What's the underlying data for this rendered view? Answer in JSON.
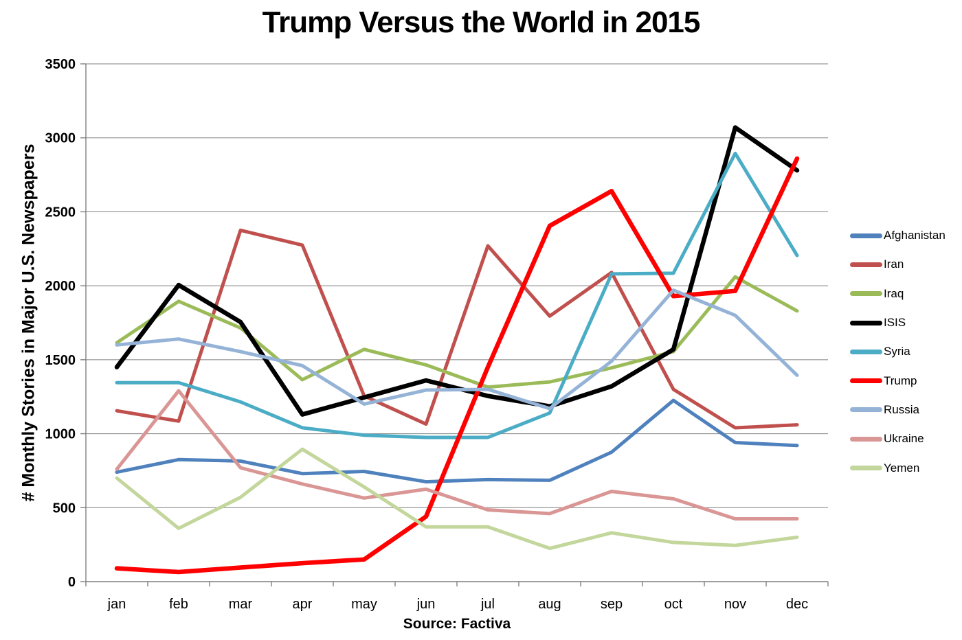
{
  "chart_data": {
    "type": "line",
    "title": "Trump Versus the World in 2015",
    "ylabel": "# Monthly Stories in Major U.S. Newspapers",
    "xlabel": "Source: Factiva",
    "ylim": [
      0,
      3500
    ],
    "yticks": [
      0,
      500,
      1000,
      1500,
      2000,
      2500,
      3000,
      3500
    ],
    "grid": true,
    "legend_position": "right",
    "categories": [
      "jan",
      "feb",
      "mar",
      "apr",
      "may",
      "jun",
      "jul",
      "aug",
      "sep",
      "oct",
      "nov",
      "dec"
    ],
    "series": [
      {
        "name": "Afghanistan",
        "color": "#4F81BD",
        "width": 5,
        "values": [
          740,
          825,
          815,
          730,
          745,
          675,
          690,
          685,
          875,
          1225,
          940,
          920
        ]
      },
      {
        "name": "Iran",
        "color": "#C0504D",
        "width": 5,
        "values": [
          1155,
          1085,
          2375,
          2275,
          1255,
          1065,
          2270,
          1795,
          2090,
          1300,
          1040,
          1060
        ]
      },
      {
        "name": "Iraq",
        "color": "#9BBB59",
        "width": 5,
        "values": [
          1615,
          1895,
          1715,
          1365,
          1570,
          1465,
          1315,
          1350,
          1445,
          1555,
          2060,
          1830
        ]
      },
      {
        "name": "ISIS",
        "color": "#000000",
        "width": 6.5,
        "values": [
          1450,
          2005,
          1755,
          1130,
          1245,
          1360,
          1255,
          1185,
          1320,
          1570,
          3070,
          2780
        ]
      },
      {
        "name": "Syria",
        "color": "#4BACC6",
        "width": 5,
        "values": [
          1345,
          1345,
          1215,
          1040,
          990,
          975,
          975,
          1140,
          2080,
          2085,
          2895,
          2205
        ]
      },
      {
        "name": "Trump",
        "color": "#FF0000",
        "width": 6.5,
        "values": [
          90,
          65,
          95,
          125,
          150,
          440,
          1450,
          2405,
          2640,
          1930,
          1965,
          2860
        ]
      },
      {
        "name": "Russia",
        "color": "#95B3D7",
        "width": 5,
        "values": [
          1600,
          1640,
          1555,
          1460,
          1200,
          1295,
          1300,
          1170,
          1490,
          1970,
          1800,
          1395
        ]
      },
      {
        "name": "Ukraine",
        "color": "#D99694",
        "width": 5,
        "values": [
          760,
          1290,
          770,
          660,
          565,
          625,
          485,
          460,
          610,
          560,
          425,
          425
        ]
      },
      {
        "name": "Yemen",
        "color": "#C3D69B",
        "width": 5,
        "values": [
          700,
          360,
          570,
          895,
          640,
          370,
          370,
          225,
          330,
          265,
          245,
          300
        ]
      }
    ],
    "axis_color": "#7f7f7f"
  }
}
